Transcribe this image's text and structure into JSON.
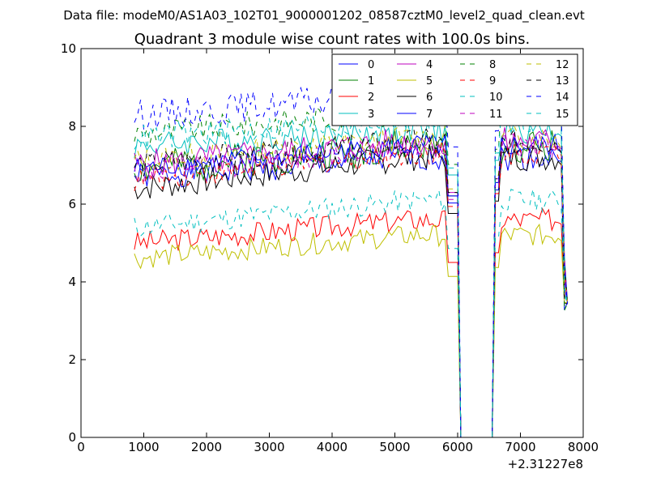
{
  "figure": {
    "suptitle": "Data file: modeM0/AS1A03_102T01_9000001202_08587cztM0_level2_quad_clean.evt"
  },
  "chart_data": {
    "type": "line",
    "title": "Quadrant 3 module wise count rates with 100.0s bins.",
    "xlabel": "",
    "ylabel": "",
    "x_offset_label": "+2.31227e8",
    "xlim": [
      0,
      8000
    ],
    "ylim": [
      0,
      10
    ],
    "xticks": [
      0,
      1000,
      2000,
      3000,
      4000,
      5000,
      6000,
      7000,
      8000
    ],
    "yticks": [
      0,
      2,
      4,
      6,
      8,
      10
    ],
    "legend_loc": "upper right",
    "gap": [
      6050,
      6550
    ],
    "series": [
      {
        "name": "0",
        "color": "#0000ff",
        "dash": "solid",
        "base": 6.7,
        "drift": 0.5,
        "noise": 0.35,
        "seed": 1
      },
      {
        "name": "1",
        "color": "#008000",
        "dash": "solid",
        "base": 6.9,
        "drift": 0.6,
        "noise": 0.45,
        "seed": 2
      },
      {
        "name": "2",
        "color": "#ff0000",
        "dash": "solid",
        "base": 5.0,
        "drift": 0.6,
        "noise": 0.3,
        "seed": 3
      },
      {
        "name": "3",
        "color": "#00bfbf",
        "dash": "solid",
        "base": 7.5,
        "drift": 0.4,
        "noise": 0.35,
        "seed": 4
      },
      {
        "name": "4",
        "color": "#bf00bf",
        "dash": "solid",
        "base": 7.0,
        "drift": 0.6,
        "noise": 0.4,
        "seed": 5
      },
      {
        "name": "5",
        "color": "#bfbf00",
        "dash": "solid",
        "base": 4.6,
        "drift": 0.6,
        "noise": 0.28,
        "seed": 6
      },
      {
        "name": "6",
        "color": "#000000",
        "dash": "solid",
        "base": 6.4,
        "drift": 0.8,
        "noise": 0.35,
        "seed": 7
      },
      {
        "name": "7",
        "color": "#0000ff",
        "dash": "solid",
        "base": 6.9,
        "drift": 0.6,
        "noise": 0.3,
        "seed": 8
      },
      {
        "name": "8",
        "color": "#008000",
        "dash": "dashed",
        "base": 7.8,
        "drift": 0.6,
        "noise": 0.35,
        "seed": 9
      },
      {
        "name": "9",
        "color": "#ff0000",
        "dash": "dashed",
        "base": 6.6,
        "drift": 0.7,
        "noise": 0.3,
        "seed": 10
      },
      {
        "name": "10",
        "color": "#00bfbf",
        "dash": "dashed",
        "base": 5.4,
        "drift": 0.7,
        "noise": 0.3,
        "seed": 11
      },
      {
        "name": "11",
        "color": "#bf00bf",
        "dash": "dashed",
        "base": 6.8,
        "drift": 0.7,
        "noise": 0.35,
        "seed": 12
      },
      {
        "name": "12",
        "color": "#bfbf00",
        "dash": "dashed",
        "base": 7.1,
        "drift": 0.6,
        "noise": 0.35,
        "seed": 13
      },
      {
        "name": "13",
        "color": "#000000",
        "dash": "dashed",
        "base": 7.0,
        "drift": 0.6,
        "noise": 0.35,
        "seed": 14
      },
      {
        "name": "14",
        "color": "#0000ff",
        "dash": "dashed",
        "base": 8.3,
        "drift": 0.5,
        "noise": 0.4,
        "seed": 15
      },
      {
        "name": "15",
        "color": "#00bfbf",
        "dash": "dashed",
        "base": 7.7,
        "drift": 0.5,
        "noise": 0.35,
        "seed": 16
      }
    ]
  }
}
